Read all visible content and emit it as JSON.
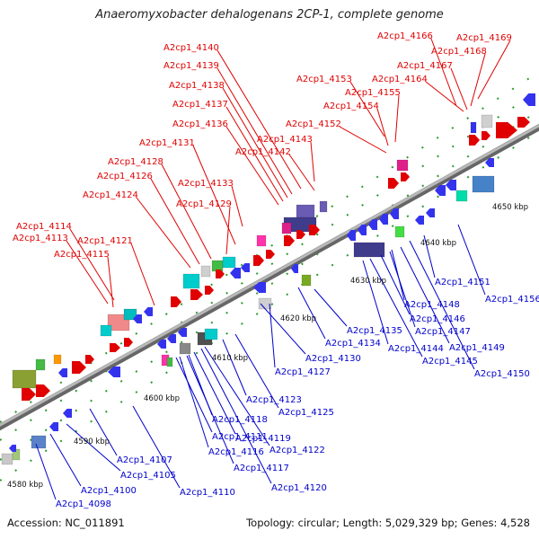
{
  "title": "Anaeromyxobacter dehalogenans 2CP-1, complete genome",
  "footer": {
    "accession": "Accession: NC_011891",
    "summary": "Topology: circular; Length: 5,029,329 bp; Genes: 4,528"
  },
  "colors": {
    "forward_label": "#e00000",
    "reverse_label": "#0000cc",
    "backbone": "#8c8c8c",
    "tick": "#2c9a2c"
  },
  "kbp_labels": [
    "4580 kbp",
    "4590 kbp",
    "4600 kbp",
    "4610 kbp",
    "4620 kbp",
    "4630 kbp",
    "4640 kbp",
    "4650 kbp"
  ],
  "forward_genes": [
    "A2cp1_4114",
    "A2cp1_4113",
    "A2cp1_4115",
    "A2cp1_4121",
    "A2cp1_4124",
    "A2cp1_4126",
    "A2cp1_4128",
    "A2cp1_4129",
    "A2cp1_4131",
    "A2cp1_4133",
    "A2cp1_4136",
    "A2cp1_4137",
    "A2cp1_4138",
    "A2cp1_4139",
    "A2cp1_4140",
    "A2cp1_4142",
    "A2cp1_4143",
    "A2cp1_4152",
    "A2cp1_4154",
    "A2cp1_4155",
    "A2cp1_4153",
    "A2cp1_4164",
    "A2cp1_4167",
    "A2cp1_4168",
    "A2cp1_4166",
    "A2cp1_4169"
  ],
  "reverse_genes": [
    "A2cp1_4098",
    "A2cp1_4100",
    "A2cp1_4105",
    "A2cp1_4107",
    "A2cp1_4110",
    "A2cp1_4111",
    "A2cp1_4116",
    "A2cp1_4117",
    "A2cp1_4118",
    "A2cp1_4119",
    "A2cp1_4120",
    "A2cp1_4122",
    "A2cp1_4123",
    "A2cp1_4125",
    "A2cp1_4127",
    "A2cp1_4130",
    "A2cp1_4134",
    "A2cp1_4135",
    "A2cp1_4144",
    "A2cp1_4145",
    "A2cp1_4146",
    "A2cp1_4147",
    "A2cp1_4148",
    "A2cp1_4149",
    "A2cp1_4150",
    "A2cp1_4151",
    "A2cp1_4156"
  ]
}
